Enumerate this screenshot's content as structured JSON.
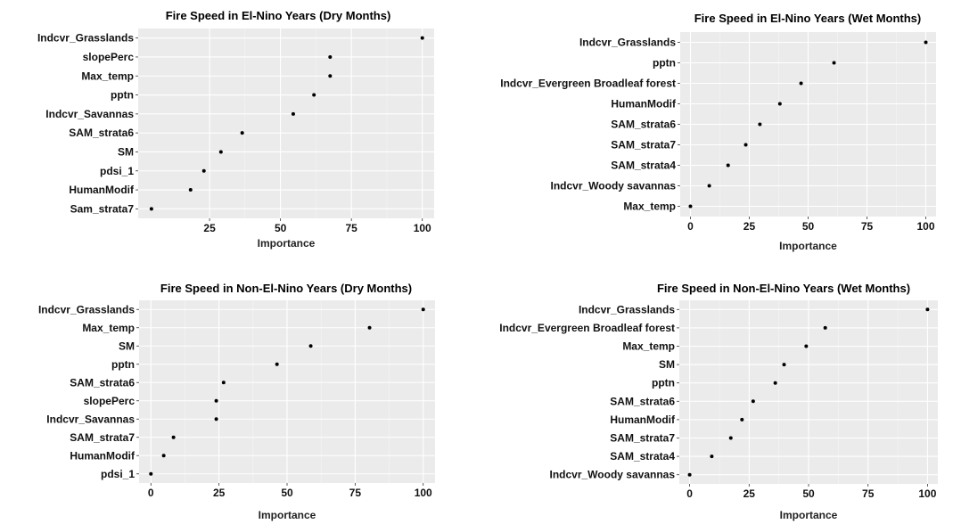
{
  "chart_data": [
    {
      "type": "scatter",
      "title": "Fire Speed in El-Nino Years (Dry Months)",
      "xlabel": "Importance",
      "xlim": [
        4,
        100
      ],
      "xticks": [
        "25",
        "50",
        "75",
        "100"
      ],
      "xtick_values": [
        25,
        50,
        75,
        100
      ],
      "categories": [
        "Indcvr_Grasslands",
        "slopePerc",
        "Max_temp",
        "pptn",
        "Indcvr_Savannas",
        "SAM_strata6",
        "SM",
        "pdsi_1",
        "HumanModif",
        "Sam_strata7"
      ],
      "values": [
        100,
        67.5,
        67.5,
        61.8,
        54.5,
        36.5,
        29,
        23,
        18.3,
        4.5
      ],
      "grid": true
    },
    {
      "type": "scatter",
      "title": "Fire Speed in El-Nino Years (Wet Months)",
      "xlabel": "Importance",
      "xlim": [
        0,
        100
      ],
      "xticks": [
        "0",
        "25",
        "50",
        "75",
        "100"
      ],
      "xtick_values": [
        0,
        25,
        50,
        75,
        100
      ],
      "categories": [
        "Indcvr_Grasslands",
        "pptn",
        "Indcvr_Evergreen Broadleaf forest",
        "HumanModif",
        "SAM_strata6",
        "SAM_strata7",
        "SAM_strata4",
        "Indcvr_Woody savannas",
        "Max_temp"
      ],
      "values": [
        100,
        61,
        47,
        38,
        29.5,
        23.5,
        16,
        8,
        0
      ],
      "grid": true
    },
    {
      "type": "scatter",
      "title": "Fire Speed in Non-El-Nino Years (Dry Months)",
      "xlabel": "Importance",
      "xlim": [
        0,
        100
      ],
      "xticks": [
        "0",
        "25",
        "50",
        "75",
        "100"
      ],
      "xtick_values": [
        0,
        25,
        50,
        75,
        100
      ],
      "categories": [
        "Indcvr_Grasslands",
        "Max_temp",
        "SM",
        "pptn",
        "SAM_strata6",
        "slopePerc",
        "Indcvr_Savannas",
        "SAM_strata7",
        "HumanModif",
        "pdsi_1"
      ],
      "values": [
        100,
        80.3,
        58.7,
        46.3,
        26.7,
        24,
        24,
        8.3,
        4.7,
        0
      ],
      "grid": true
    },
    {
      "type": "scatter",
      "title": "Fire Speed in Non-El-Nino Years (Wet Months)",
      "xlabel": "Importance",
      "xlim": [
        0,
        100
      ],
      "xticks": [
        "0",
        "25",
        "50",
        "75",
        "100"
      ],
      "xtick_values": [
        0,
        25,
        50,
        75,
        100
      ],
      "categories": [
        "Indcvr_Grasslands",
        "Indcvr_Evergreen Broadleaf forest",
        "Max_temp",
        "SM",
        "pptn",
        "SAM_strata6",
        "HumanModif",
        "SAM_strata7",
        "SAM_strata4",
        "Indcvr_Woody savannas"
      ],
      "values": [
        100,
        57,
        49,
        39.7,
        36,
        26.7,
        22,
        17.3,
        9.3,
        0
      ],
      "grid": true
    }
  ],
  "colors": {
    "panel_background": "#ebebeb",
    "gridline": "#ffffff",
    "point": "#000000",
    "text": "#111111"
  }
}
